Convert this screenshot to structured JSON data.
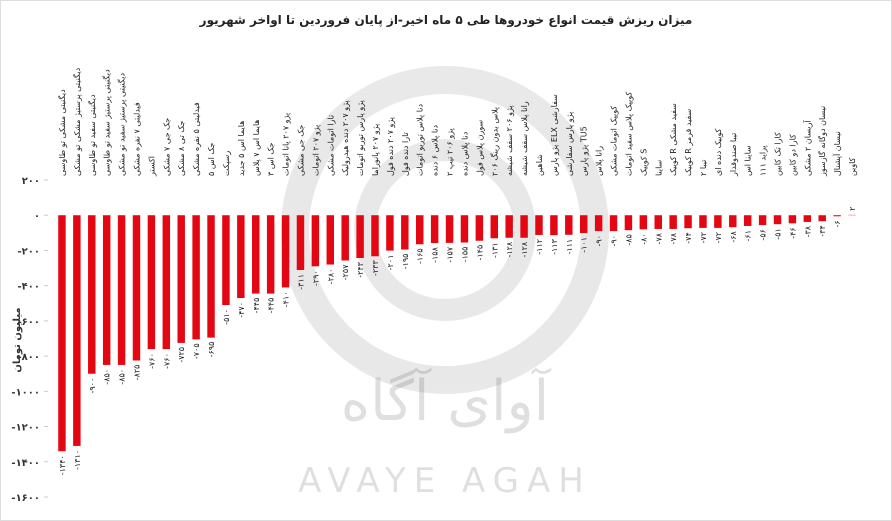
{
  "chart_data": {
    "type": "bar",
    "title": "میزان ریزش قیمت انواع خودروها طی ۵ ماه اخیر-از پایان فروردین تا اواخر شهریور",
    "y_label": "میلیون تومان",
    "watermark": "آوای آگاه",
    "watermark_latin": "AVAYE AGAH",
    "color": "#e30613",
    "ylim": [
      -1600,
      200
    ],
    "yticks": [
      {
        "value": 200,
        "label": "۲۰۰"
      },
      {
        "value": 0,
        "label": "۰"
      },
      {
        "value": -200,
        "label": "-۲۰۰"
      },
      {
        "value": -400,
        "label": "-۴۰۰"
      },
      {
        "value": -600,
        "label": "-۶۰۰"
      },
      {
        "value": -800,
        "label": "-۸۰۰"
      },
      {
        "value": -1000,
        "label": "-۱۰۰۰"
      },
      {
        "value": -1200,
        "label": "-۱۲۰۰"
      },
      {
        "value": -1400,
        "label": "-۱۴۰۰"
      },
      {
        "value": -1600,
        "label": "-۱۶۰۰"
      }
    ],
    "categories": [
      "دیگنیتی مشکی تو طاوسی",
      "دیگنیتی پرستیژ مشکی تو مشکی",
      "دیگنیتی سفید تو طاوسی",
      "دیگنیتی پرستیژ سفید تو طاوسی",
      "دیگنیتی پرستیژ سفید تو مشکی",
      "فیدلیتی ۷ نفره مشکی",
      "اکستر",
      "جک جی ۷ مشکی",
      "جک تی ۸ مشکی",
      "فیدلیتی ۵ نفره مشکی",
      "جک اس ۵",
      "رسپکت",
      "هایما اس ۵ جدید",
      "هایما اس ۷ پلاس",
      "جک اس ۳",
      "پژو ۲۰۷ پانا اتومات",
      "جک جی مشکی",
      "پژو ۲۰۷ اتومات",
      "تارا اتومات مشکی",
      "پژو ۲۰۷ دنده هیدرولیک",
      "پژو پارس توربو اتومات",
      "پژو ۲۰۷ پانوراما",
      "پژو ۲۰۷ دنده فول",
      "تارا دنده فول",
      "دنا پلاس توربو اتومات",
      "دنا پلاس ۶ دنده",
      "پژو ۲۰۶ تیپ ۲",
      "دنا پلاس دنده",
      "سورن پلاس فول",
      "۲۰۶ پلاس بدون رینگ",
      "پژو ۲۰۶ سقف شیشه",
      "رانا پلاس سقف شیشه",
      "شاهین",
      "پژو پارس ELX سفارشی",
      "پژو پارس سفارشی",
      "پژو پارس TU5",
      "رانا پلاس",
      "کوییک اتومات مشکی",
      "کوییک پلاس سفید اتومات",
      "کوییک S",
      "ساینا",
      "کوییک R سفید مشکی",
      "کوییک R سفید قرمز",
      "تیبا ۲",
      "کوییک دنده ای",
      "تیبا صندوقدار",
      "ساینا اس",
      "پراید ۱۱۱",
      "کارا تک کابین",
      "کارا دو کابین",
      "آریسان ۲ مشکی",
      "نیسان دوگانه گازسوز",
      "نیسان آپشنال",
      "کاوین"
    ],
    "values": [
      -1340,
      -1310,
      -900,
      -850,
      -850,
      -825,
      -760,
      -760,
      -725,
      -705,
      -695,
      -510,
      -470,
      -445,
      -445,
      -410,
      -311,
      -290,
      -280,
      -257,
      -243,
      -233,
      -201,
      -195,
      -165,
      -158,
      -157,
      -155,
      -145,
      -131,
      -128,
      -128,
      -112,
      -113,
      -111,
      -101,
      -90,
      -90,
      -85,
      -80,
      -78,
      -78,
      -74,
      -72,
      -72,
      -68,
      -61,
      -56,
      -51,
      -46,
      -38,
      -34,
      -6,
      2
    ],
    "value_labels": [
      "-۱۳۴۰",
      "-۱۳۱۰",
      "-۹۰۰",
      "-۸۵۰",
      "-۸۵۰",
      "-۸۲۵",
      "-۷۶۰",
      "-۷۶۰",
      "-۷۲۵",
      "-۷۰۵",
      "-۶۹۵",
      "-۵۱۰",
      "-۴۷۰",
      "-۴۴۵",
      "-۴۴۵",
      "-۴۱۰",
      "-۳۱۱",
      "-۲۹۰",
      "-۲۸۰",
      "-۲۵۷",
      "-۲۴۳",
      "-۲۳۳",
      "-۲۰۱",
      "-۱۹۵",
      "-۱۶۵",
      "-۱۵۸",
      "-۱۵۷",
      "-۱۵۵",
      "-۱۴۵",
      "-۱۳۱",
      "-۱۲۸",
      "-۱۲۸",
      "-۱۱۲",
      "-۱۱۳",
      "-۱۱۱",
      "-۱۰۱",
      "-۹۰",
      "-۹۰",
      "-۸۵",
      "-۸۰",
      "-۷۸",
      "-۷۸",
      "-۷۴",
      "-۷۲",
      "-۷۲",
      "-۶۸",
      "-۶۱",
      "-۵۶",
      "-۵۱",
      "-۴۶",
      "-۳۸",
      "-۳۴",
      "-۶",
      "۲"
    ]
  }
}
